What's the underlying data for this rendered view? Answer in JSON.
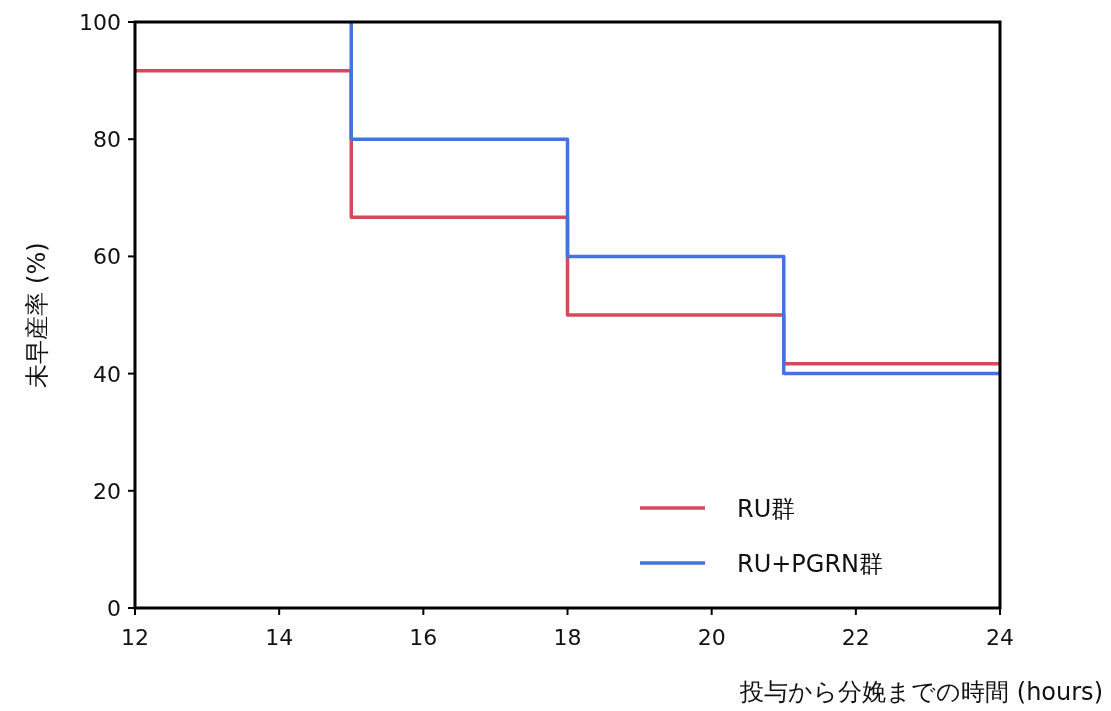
{
  "chart_data": {
    "type": "step",
    "xlabel": "投与から分娩までの時間 (hours)",
    "ylabel": "未早産率 (%)",
    "xlim": [
      12,
      24
    ],
    "xticks": [
      12,
      14,
      16,
      18,
      20,
      22,
      24
    ],
    "ylim": [
      0,
      100
    ],
    "yticks": [
      0,
      20,
      40,
      60,
      80,
      100
    ],
    "grid": false,
    "legend": "bottom right",
    "marker": "none",
    "line_style": "solid",
    "series": [
      {
        "name": "RU群",
        "color": "#d9475a",
        "x": [
          12,
          15,
          18,
          21,
          24
        ],
        "values": [
          91.7,
          66.7,
          50,
          41.7,
          41.7
        ]
      },
      {
        "name": "RU+PGRN群",
        "color": "#4472e0",
        "x": [
          15,
          15,
          18,
          21,
          24
        ],
        "values": [
          100,
          80,
          60,
          40,
          40
        ]
      }
    ]
  }
}
